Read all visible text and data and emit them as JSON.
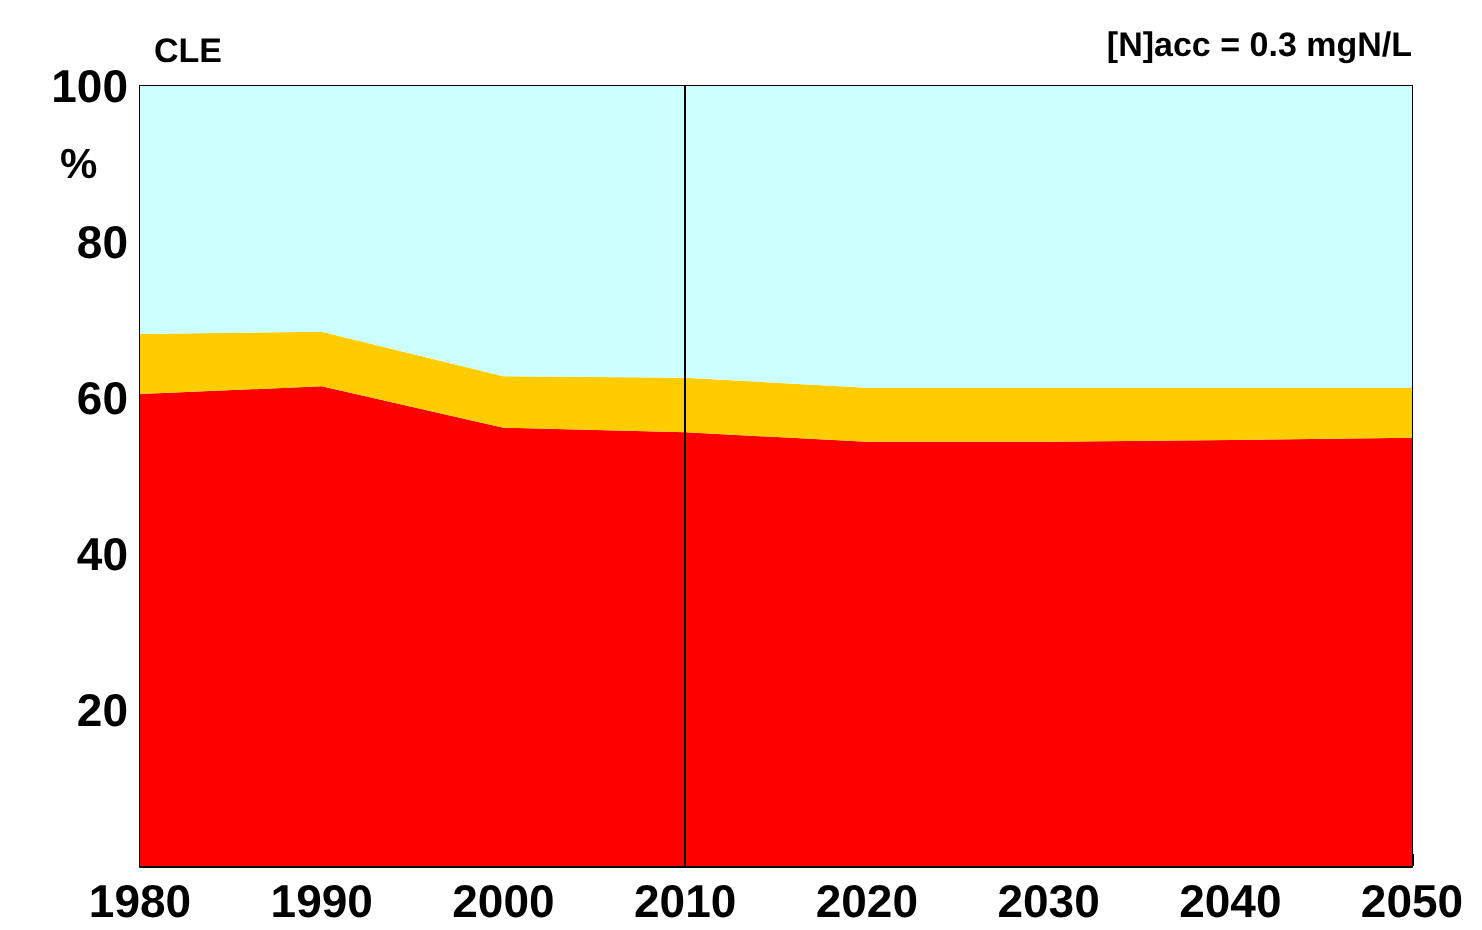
{
  "chart_data": {
    "type": "area",
    "title": "CLE",
    "ylabel": "%",
    "annotations": [
      "[N]acc = 0.3 mgN/L"
    ],
    "x": [
      1980,
      1990,
      2000,
      2010,
      2020,
      2030,
      2040,
      2050
    ],
    "stacked": true,
    "series": [
      {
        "color": "#ff0000",
        "values": [
          60.5,
          61.5,
          56.2,
          55.6,
          54.4,
          54.4,
          54.6,
          54.9
        ]
      },
      {
        "color": "#ffcc00",
        "values": [
          7.7,
          7.0,
          6.6,
          7.0,
          6.9,
          6.9,
          6.7,
          6.4
        ]
      },
      {
        "color": "#ccffff",
        "values": [
          31.8,
          31.5,
          37.2,
          37.4,
          38.7,
          38.7,
          38.7,
          38.7
        ]
      }
    ],
    "xlim": [
      1980,
      2050
    ],
    "xticks": [
      1980,
      1990,
      2000,
      2010,
      2020,
      2030,
      2040,
      2050
    ],
    "ylim": [
      0,
      100
    ],
    "yticks": [
      20,
      40,
      60,
      80,
      100
    ],
    "ref_lines": [
      {
        "axis": "x",
        "value": 2010,
        "color": "#000000"
      }
    ],
    "grid": false
  }
}
